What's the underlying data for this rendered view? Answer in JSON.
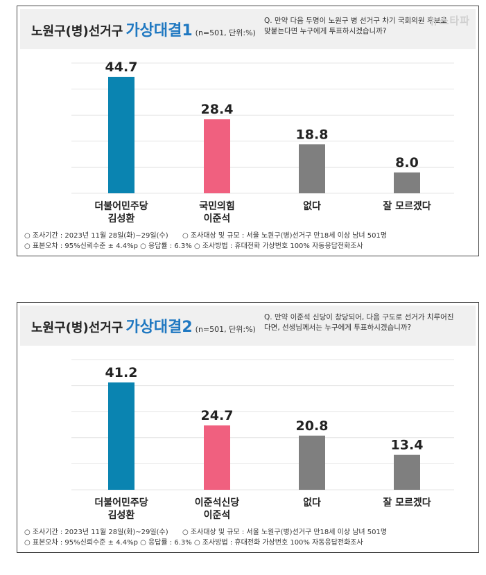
{
  "watermark": "뉴스타파",
  "panels": [
    {
      "title_prefix": "노원구(병)선거구",
      "title_main": "가상대결1",
      "title_sub": "(n=501, 단위:%)",
      "question_line1": "Q. 만약 다음 두명이 노원구 병 선거구 차기 국회의원 후보로",
      "question_line2": "맞붙는다면 누구에게 투표하시겠습니까?",
      "footer": {
        "line1a": "○ 조사기간 : 2023년 11월 28일(화)~29일(수)",
        "line1b": "○ 조사대상 및 규모 : 서울 노원구(병)선거구 만18세 이상 남녀  501명",
        "line2": "○ 표본오차 : 95%신뢰수준 ± 4.4%p   ○ 응답률 : 6.3%   ○ 조사방법 : 휴대전화 가상번호 100% 자동응답전화조사"
      }
    },
    {
      "title_prefix": "노원구(병)선거구",
      "title_main": "가상대결2",
      "title_sub": "(n=501, 단위:%)",
      "question_line1": "Q. 만약 이준석 신당이 창당되어, 다음 구도로 선거가 치루어진",
      "question_line2": "다면, 선생님께서는 누구에게 투표하시겠습니까?",
      "footer": {
        "line1a": "○ 조사기간 : 2023년 11월 28일(화)~29일(수)",
        "line1b": "○ 조사대상 및 규모 : 서울 노원구(병)선거구 만18세 이상 남녀  501명",
        "line2": "○ 표본오차 : 95%신뢰수준 ± 4.4%p   ○ 응답률 : 6.3%   ○ 조사방법 : 휴대전화 가상번호 100% 자동응답전화조사"
      }
    }
  ],
  "chart_data": [
    {
      "type": "bar",
      "title": "노원구(병)선거구 가상대결1",
      "categories": [
        [
          "더불어민주당",
          "김성환"
        ],
        [
          "국민의힘",
          "이준석"
        ],
        [
          "없다"
        ],
        [
          "잘 모르겠다"
        ]
      ],
      "values": [
        44.7,
        28.4,
        18.8,
        8.0
      ],
      "value_labels": [
        "44.7",
        "28.4",
        "18.8",
        "8.0"
      ],
      "colors": [
        "#0a84b1",
        "#f0607f",
        "#7f7f7f",
        "#7f7f7f"
      ],
      "ylim": [
        0,
        50
      ],
      "grid": true
    },
    {
      "type": "bar",
      "title": "노원구(병)선거구 가상대결2",
      "categories": [
        [
          "더불어민주당",
          "김성환"
        ],
        [
          "이준석신당",
          "이준석"
        ],
        [
          "없다"
        ],
        [
          "잘 모르겠다"
        ]
      ],
      "values": [
        41.2,
        24.7,
        20.8,
        13.4
      ],
      "value_labels": [
        "41.2",
        "24.7",
        "20.8",
        "13.4"
      ],
      "colors": [
        "#0a84b1",
        "#f0607f",
        "#7f7f7f",
        "#7f7f7f"
      ],
      "ylim": [
        0,
        50
      ],
      "grid": true
    }
  ]
}
